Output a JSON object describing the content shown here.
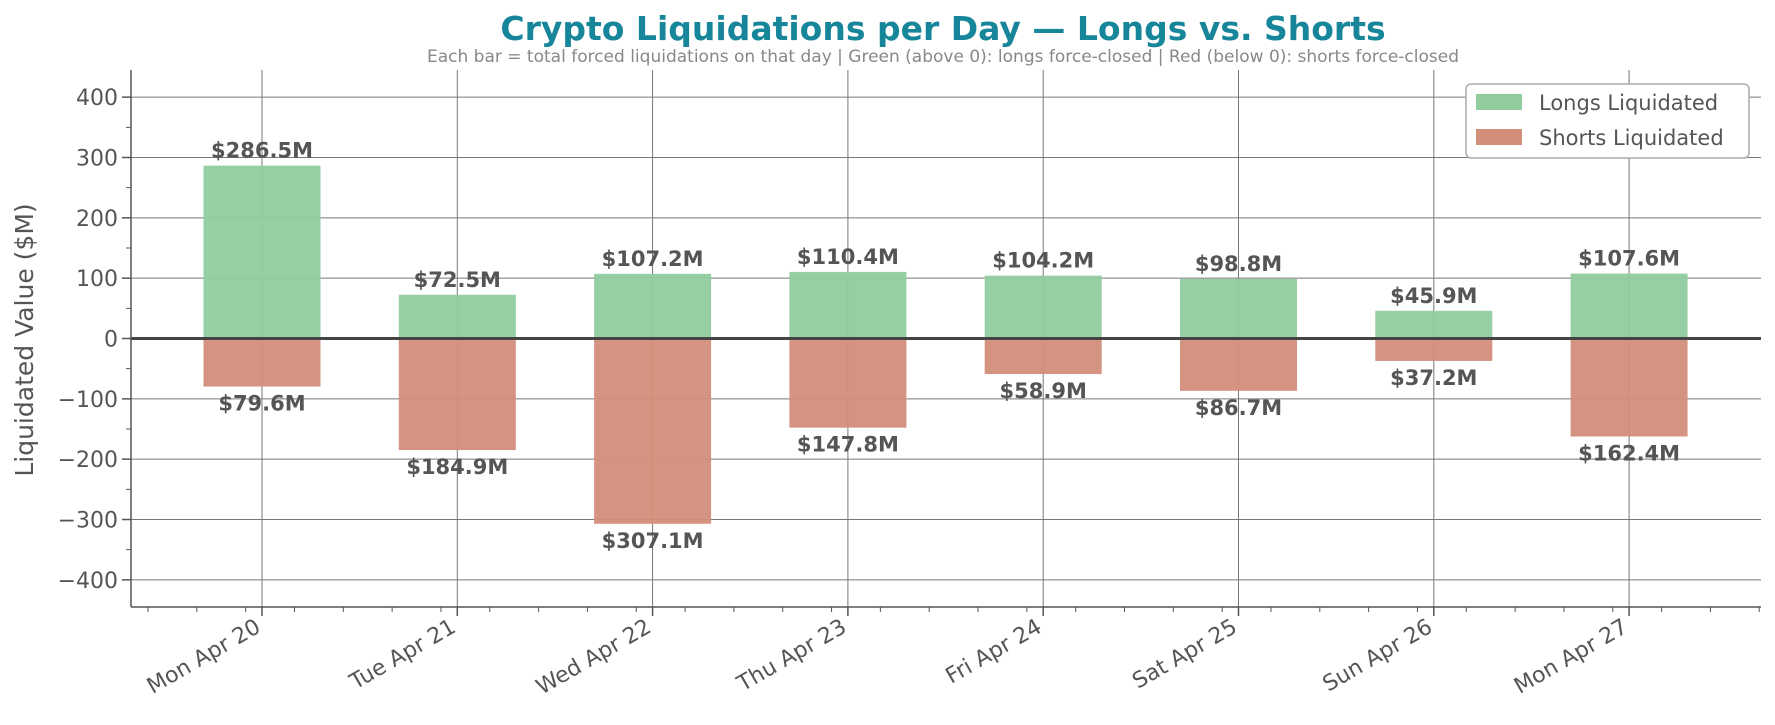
{
  "chart_data": {
    "type": "bar",
    "title": "Crypto Liquidations per Day — Longs vs. Shorts",
    "subtitle": "Each bar = total forced liquidations on that day  |  Green (above 0): longs force-closed  |  Red (below 0): shorts force-closed",
    "xlabel": "",
    "ylabel": "Liquidated Value ($M)",
    "ylim": [
      -445,
      445
    ],
    "yticks": [
      -400,
      -300,
      -200,
      -100,
      0,
      100,
      200,
      300,
      400
    ],
    "categories": [
      "Mon Apr 20",
      "Tue Apr 21",
      "Wed Apr 22",
      "Thu Apr 23",
      "Fri Apr 24",
      "Sat Apr 25",
      "Sun Apr 26",
      "Mon Apr 27"
    ],
    "series": [
      {
        "name": "Longs Liquidated",
        "color": "#90cc9e",
        "values": [
          286.5,
          72.5,
          107.2,
          110.4,
          104.2,
          98.8,
          45.9,
          107.6
        ],
        "labels": [
          "$286.5M",
          "$72.5M",
          "$107.2M",
          "$110.4M",
          "$104.2M",
          "$98.8M",
          "$45.9M",
          "$107.6M"
        ]
      },
      {
        "name": "Shorts Liquidated",
        "color": "#d38e7a",
        "values": [
          -79.6,
          -184.9,
          -307.1,
          -147.8,
          -58.9,
          -86.7,
          -37.2,
          -162.4
        ],
        "labels": [
          "$79.6M",
          "$184.9M",
          "$307.1M",
          "$147.8M",
          "$58.9M",
          "$86.7M",
          "$37.2M",
          "$162.4M"
        ]
      }
    ],
    "grid": true,
    "legend_position": "top-right",
    "title_color": "#17869a"
  }
}
